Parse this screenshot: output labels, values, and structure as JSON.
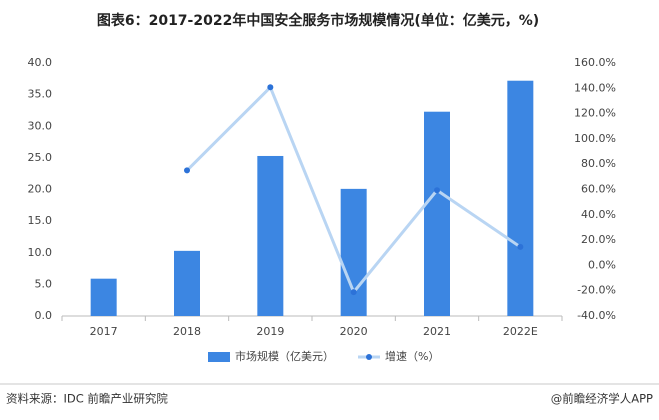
{
  "chart_data": {
    "type": "bar-line",
    "title": "图表6：2017-2022年中国安全服务市场规模情况(单位：亿美元，%)",
    "categories": [
      "2017",
      "2018",
      "2019",
      "2020",
      "2021",
      "2022E"
    ],
    "series": [
      {
        "name": "市场规模（亿美元）",
        "type": "bar",
        "color": "#3c86e2",
        "values": [
          5.9,
          10.3,
          25.3,
          20.1,
          32.3,
          37.2
        ]
      },
      {
        "name": "增速（%）",
        "type": "line",
        "axis": "y2",
        "color": "#b9d5f3",
        "marker_color": "#2c72d8",
        "values": [
          null,
          75.1,
          140.8,
          -21.1,
          59.4,
          14.6
        ]
      }
    ],
    "ylim": [
      0,
      40
    ],
    "yticks": [
      {
        "value": 0,
        "label": "0.0"
      },
      {
        "value": 5,
        "label": "5.0"
      },
      {
        "value": 10,
        "label": "10.0"
      },
      {
        "value": 15,
        "label": "15.0"
      },
      {
        "value": 20,
        "label": "20.0"
      },
      {
        "value": 25,
        "label": "25.0"
      },
      {
        "value": 30,
        "label": "30.0"
      },
      {
        "value": 35,
        "label": "35.0"
      },
      {
        "value": 40,
        "label": "40.0"
      }
    ],
    "y2lim": [
      -40,
      160
    ],
    "y2ticks": [
      {
        "value": -40,
        "label": "-40.0%"
      },
      {
        "value": -20,
        "label": "-20.0%"
      },
      {
        "value": 0,
        "label": "0.0%"
      },
      {
        "value": 20,
        "label": "20.0%"
      },
      {
        "value": 40,
        "label": "40.0%"
      },
      {
        "value": 60,
        "label": "60.0%"
      },
      {
        "value": 80,
        "label": "80.0%"
      },
      {
        "value": 100,
        "label": "100.0%"
      },
      {
        "value": 120,
        "label": "120.0%"
      },
      {
        "value": 140,
        "label": "140.0%"
      },
      {
        "value": 160,
        "label": "160.0%"
      }
    ],
    "grid": false,
    "source": "资料来源：IDC 前瞻产业研究院",
    "credit": "@前瞻经济学人APP"
  }
}
